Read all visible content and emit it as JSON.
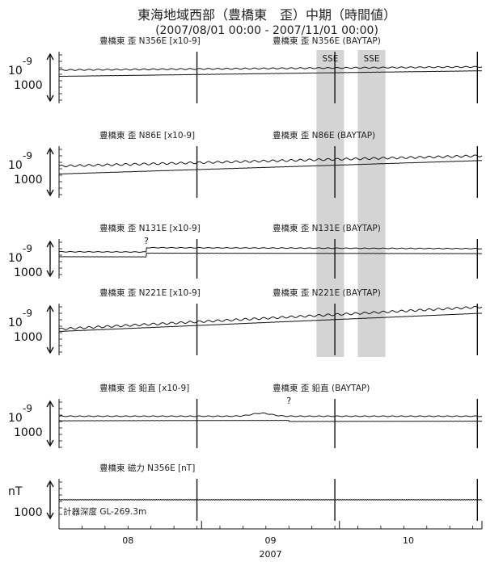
{
  "chart_data": {
    "type": "line",
    "title": "東海地域西部（豊橋東　歪）中期（時間値）",
    "subtitle": "(2007/08/01 00:00 - 2007/11/01 00:00)",
    "x_range": [
      "2007-08-01 00:00",
      "2007-11-01 00:00"
    ],
    "x_tick_labels": [
      "08",
      "09",
      "10"
    ],
    "x_year_label": "2007",
    "shaded_regions": [
      {
        "label": "SSE",
        "start": "2007-09-26",
        "end": "2007-10-02"
      },
      {
        "label": "SSE",
        "start": "2007-10-05",
        "end": "2007-10-11"
      }
    ],
    "event_markers": [
      "2007-08-31 00:00",
      "2007-09-30 00:00",
      "2007-10-31 00:00"
    ],
    "panels": [
      {
        "id": "n356e",
        "raw_label": "豊橋東 歪 N356E [x10-9]",
        "tidal_label": "豊橋東 歪 N356E (BAYTAP)",
        "scale_unit": "10",
        "scale_exp": "-9",
        "scale_value": "1000",
        "series": [
          {
            "kind": "raw",
            "y_start": 1.0,
            "y_end": 1.4,
            "wave_amp": 0.07,
            "wave_period_days": 2.0
          },
          {
            "kind": "baytap",
            "y_start": 0.2,
            "y_end": 0.9,
            "wave_amp": 0.01,
            "wave_period_days": 1.0
          }
        ]
      },
      {
        "id": "n86e",
        "raw_label": "豊橋東 歪 N86E [x10-9]",
        "tidal_label": "豊橋東 歪 N86E (BAYTAP)",
        "scale_unit": "10",
        "scale_exp": "-9",
        "scale_value": "1000",
        "series": [
          {
            "kind": "raw",
            "y_start": 0.8,
            "y_end": 2.1,
            "wave_amp": 0.12,
            "wave_period_days": 2.0
          },
          {
            "kind": "baytap",
            "y_start": -0.2,
            "y_end": 1.5,
            "wave_amp": 0.01,
            "wave_period_days": 1.0
          }
        ]
      },
      {
        "id": "n131e",
        "raw_label": "豊橋東 歪 N131E [x10-9]",
        "tidal_label": "豊橋東 歪 N131E (BAYTAP)",
        "scale_unit": "10",
        "scale_exp": "-9",
        "scale_value": "1000",
        "annotation": {
          "text": "?",
          "date": "2007-08-20"
        },
        "series": [
          {
            "kind": "raw",
            "y_start": 1.1,
            "y_end": 0.9,
            "step_date": "2007-08-20",
            "step_size": 0.7,
            "wave_amp": 0.05,
            "wave_period_days": 2.0
          },
          {
            "kind": "baytap",
            "y_start": 0.3,
            "y_end": 0.2,
            "step_date": "2007-08-20",
            "step_size": 0.6,
            "wave_amp": 0.01,
            "wave_period_days": 1.0
          }
        ]
      },
      {
        "id": "n221e",
        "raw_label": "豊橋東 歪 N221E [x10-9]",
        "tidal_label": "豊橋東 歪 N221E (BAYTAP)",
        "scale_unit": "10",
        "scale_exp": "-9",
        "scale_value": "1000",
        "series": [
          {
            "kind": "raw",
            "y_start": 0.1,
            "y_end": 2.9,
            "wave_amp": 0.12,
            "wave_period_days": 2.0
          },
          {
            "kind": "baytap",
            "y_start": -0.2,
            "y_end": 2.1,
            "wave_amp": 0.01,
            "wave_period_days": 1.0
          }
        ]
      },
      {
        "id": "vertical",
        "raw_label": "豊橋東 歪 鉛直 [x10-9]",
        "tidal_label": "豊橋東 歪 鉛直 (BAYTAP)",
        "scale_unit": "10",
        "scale_exp": "-9",
        "scale_value": "1000",
        "annotation": {
          "text": "?",
          "date": "2007-09-20"
        },
        "series": [
          {
            "kind": "raw",
            "y_start": 1.0,
            "y_end": 1.0,
            "bump_date": "2007-09-14",
            "bump_size": 0.4,
            "wave_amp": 0.05,
            "wave_period_days": 2.0
          },
          {
            "kind": "baytap",
            "y_start": 0.4,
            "y_end": 0.5,
            "step_date": "2007-09-20",
            "step_size": -0.15,
            "wave_amp": 0.01,
            "wave_period_days": 1.0
          }
        ]
      },
      {
        "id": "magnetic",
        "raw_label": "豊橋東 磁力 N356E [nT]",
        "tidal_label": "",
        "scale_unit": "nT",
        "scale_exp": "",
        "scale_value": "1000",
        "footer_note": "計器深度 GL-269.3m",
        "series": [
          {
            "kind": "raw",
            "y_start": 0.0,
            "y_end": 0.0,
            "wave_amp": 0.05,
            "wave_period_days": 0.5
          }
        ]
      }
    ]
  }
}
